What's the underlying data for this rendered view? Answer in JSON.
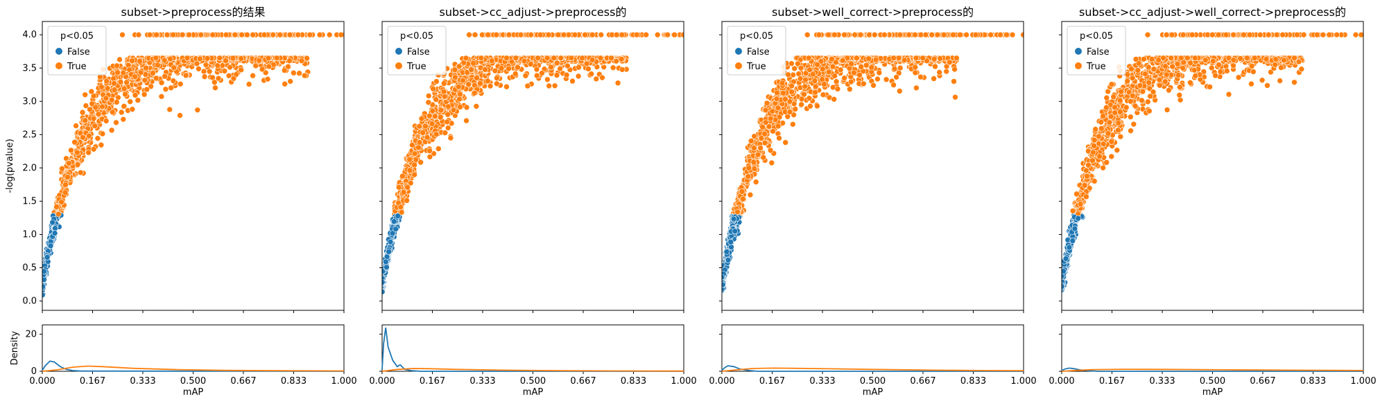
{
  "chart_data": {
    "type": "scatter",
    "legend_title": "p<0.05",
    "legend_entries": [
      "False",
      "True"
    ],
    "legend_placement": "upper-left",
    "colors": {
      "False": "#1f77b4",
      "True": "#ff7f0e"
    },
    "xlabel": "mAP",
    "ylabel_top": "-log(pvalue)",
    "ylabel_bottom": "Density",
    "xlim": [
      0,
      1
    ],
    "xticks": [
      "0.000",
      "0.167",
      "0.333",
      "0.500",
      "0.667",
      "0.833",
      "1.000"
    ],
    "ylim_top": [
      -0.14,
      4.2
    ],
    "yticks_top": [
      "0.0",
      "0.5",
      "1.0",
      "1.5",
      "2.0",
      "2.5",
      "3.0",
      "3.5",
      "4.0"
    ],
    "ylim_bottom": [
      0,
      25
    ],
    "yticks_bottom": [
      "0",
      "20"
    ],
    "panels": [
      {
        "title": "subset->preprocess的结果",
        "false_xmax": 0.09,
        "true_xmax": 0.88,
        "density_false": [
          [
            0.0,
            0.5
          ],
          [
            0.01,
            3
          ],
          [
            0.025,
            5.5
          ],
          [
            0.04,
            5
          ],
          [
            0.06,
            2.5
          ],
          [
            0.08,
            1
          ],
          [
            0.1,
            0.4
          ],
          [
            0.13,
            0.1
          ],
          [
            1.0,
            0
          ]
        ],
        "density_true": [
          [
            0.0,
            0
          ],
          [
            0.05,
            0.8
          ],
          [
            0.1,
            2.2
          ],
          [
            0.15,
            2.8
          ],
          [
            0.2,
            2.5
          ],
          [
            0.3,
            1.6
          ],
          [
            0.45,
            0.9
          ],
          [
            0.6,
            0.5
          ],
          [
            0.8,
            0.3
          ],
          [
            1.0,
            0.2
          ]
        ]
      },
      {
        "title": "subset->cc_adjust->preprocess的",
        "false_xmax": 0.11,
        "true_xmax": 0.81,
        "density_false": [
          [
            0.0,
            1
          ],
          [
            0.005,
            15
          ],
          [
            0.012,
            23.5
          ],
          [
            0.02,
            13
          ],
          [
            0.035,
            6
          ],
          [
            0.05,
            2.5
          ],
          [
            0.06,
            3.5
          ],
          [
            0.075,
            1
          ],
          [
            0.1,
            0.3
          ],
          [
            0.13,
            0
          ],
          [
            1.0,
            0
          ]
        ],
        "density_true": [
          [
            0.0,
            0
          ],
          [
            0.05,
            1
          ],
          [
            0.1,
            1.5
          ],
          [
            0.15,
            1.4
          ],
          [
            0.25,
            1
          ],
          [
            0.4,
            0.6
          ],
          [
            0.6,
            0.3
          ],
          [
            0.8,
            0.2
          ],
          [
            1.0,
            0.1
          ]
        ]
      },
      {
        "title": "subset->well_correct->preprocess的",
        "false_xmax": 0.11,
        "true_xmax": 0.78,
        "density_false": [
          [
            0.0,
            0.5
          ],
          [
            0.01,
            2
          ],
          [
            0.02,
            3
          ],
          [
            0.04,
            2.5
          ],
          [
            0.06,
            1.2
          ],
          [
            0.09,
            0.4
          ],
          [
            0.12,
            0
          ],
          [
            1.0,
            0
          ]
        ],
        "density_true": [
          [
            0.0,
            0
          ],
          [
            0.05,
            0.8
          ],
          [
            0.1,
            1.5
          ],
          [
            0.17,
            1.7
          ],
          [
            0.3,
            1.5
          ],
          [
            0.5,
            1
          ],
          [
            0.7,
            0.6
          ],
          [
            0.85,
            0.4
          ],
          [
            1.0,
            0.3
          ]
        ]
      },
      {
        "title": "subset->cc_adjust->well_correct->preprocess的",
        "false_xmax": 0.08,
        "true_xmax": 0.8,
        "density_false": [
          [
            0.0,
            0.3
          ],
          [
            0.01,
            1.2
          ],
          [
            0.025,
            1.7
          ],
          [
            0.04,
            1.4
          ],
          [
            0.06,
            0.8
          ],
          [
            0.09,
            0.3
          ],
          [
            0.12,
            0
          ],
          [
            1.0,
            0
          ]
        ],
        "density_true": [
          [
            0.0,
            0
          ],
          [
            0.05,
            0.5
          ],
          [
            0.1,
            0.9
          ],
          [
            0.2,
            1.1
          ],
          [
            0.35,
            1
          ],
          [
            0.55,
            0.8
          ],
          [
            0.75,
            0.6
          ],
          [
            0.9,
            0.5
          ],
          [
            1.0,
            0.4
          ]
        ]
      }
    ]
  }
}
